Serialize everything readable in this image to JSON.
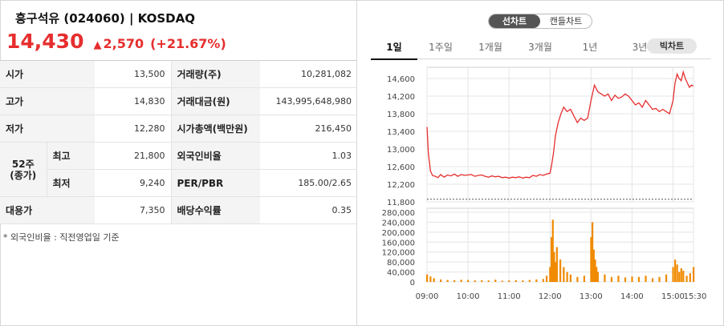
{
  "stock": {
    "title": "흥구석유 (024060) | KOSDAQ",
    "price": "14,430",
    "change_arrow": "▲",
    "change": "2,570",
    "change_rate": "(+21.67%)"
  },
  "info_table": {
    "rows": [
      {
        "l1": "시가",
        "v1": "13,500",
        "l2": "거래량(주)",
        "v2": "10,281,082"
      },
      {
        "l1": "고가",
        "v1": "14,830",
        "l2": "거래대금(원)",
        "v2": "143,995,648,980"
      },
      {
        "l1": "저가",
        "v1": "12,280",
        "l2": "시가총액(백만원)",
        "v2": "216,450"
      },
      {
        "l1": "최고",
        "v1": "21,800",
        "l2": "외국인비율",
        "v2": "1.03"
      },
      {
        "l1": "최저",
        "v1": "9,240",
        "l2": "PER/PBR",
        "v2": "185.00/2.65"
      },
      {
        "l1": "대용가",
        "v1": "7,350",
        "l2": "배당수익률",
        "v2": "0.35"
      }
    ],
    "week52_label_1": "52주",
    "week52_label_2": "(종가)"
  },
  "footnote": "* 외국인비율 : 직전영업일 기준",
  "chart_type_toggle": {
    "line": "선차트",
    "candle": "캔들차트",
    "selected": "선차트"
  },
  "periods": [
    "1일",
    "1주일",
    "1개월",
    "3개월",
    "1년",
    "3년"
  ],
  "active_period": "1일",
  "big_chart_label": "빅차트",
  "colors": {
    "up": "#e62e2e",
    "volume": "#f08a00",
    "prev_close": "#555555"
  },
  "chart_data": [
    {
      "type": "line",
      "title": "",
      "ylim": [
        11800,
        14800
      ],
      "y_ticks": [
        "14,600",
        "14,200",
        "13,800",
        "13,400",
        "13,000",
        "12,600",
        "12,200",
        "11,800"
      ],
      "x_ticks": [
        "09:00",
        "10:00",
        "11:00",
        "12:00",
        "13:00",
        "14:00",
        "15:00",
        "15:30"
      ],
      "prev_close": 11860,
      "series": [
        {
          "x": [
            "09:00",
            "09:02",
            "09:05",
            "09:08",
            "09:12",
            "09:16",
            "09:20",
            "09:25",
            "09:30",
            "09:35",
            "09:40",
            "09:45",
            "09:50",
            "09:55",
            "10:00",
            "10:05",
            "10:10",
            "10:15",
            "10:20",
            "10:25",
            "10:30",
            "10:35",
            "10:40",
            "10:45",
            "10:50",
            "10:55",
            "11:00",
            "11:05",
            "11:10",
            "11:15",
            "11:20",
            "11:25",
            "11:30",
            "11:35",
            "11:40",
            "11:45",
            "11:50",
            "11:55",
            "12:00",
            "12:02",
            "12:05",
            "12:08",
            "12:12",
            "12:16",
            "12:20",
            "12:25",
            "12:30",
            "12:35",
            "12:40",
            "12:45",
            "12:50",
            "12:55",
            "13:00",
            "13:05",
            "13:10",
            "13:15",
            "13:20",
            "13:25",
            "13:30",
            "13:35",
            "13:40",
            "13:45",
            "13:50",
            "13:55",
            "14:00",
            "14:05",
            "14:10",
            "14:15",
            "14:20",
            "14:25",
            "14:30",
            "14:35",
            "14:40",
            "14:45",
            "14:50",
            "14:55",
            "15:00",
            "15:03",
            "15:06",
            "15:09",
            "15:12",
            "15:15",
            "15:18",
            "15:21",
            "15:24",
            "15:27",
            "15:30"
          ],
          "y": [
            13500,
            12900,
            12500,
            12400,
            12380,
            12350,
            12420,
            12360,
            12410,
            12390,
            12430,
            12380,
            12420,
            12400,
            12410,
            12420,
            12380,
            12400,
            12410,
            12380,
            12360,
            12390,
            12370,
            12380,
            12350,
            12360,
            12340,
            12360,
            12350,
            12370,
            12340,
            12360,
            12350,
            12400,
            12380,
            12420,
            12400,
            12430,
            12450,
            12600,
            12900,
            13300,
            13600,
            13800,
            13950,
            13850,
            13900,
            13750,
            13600,
            13700,
            13650,
            13700,
            14100,
            14450,
            14300,
            14250,
            14200,
            14250,
            14100,
            14220,
            14150,
            14180,
            14250,
            14200,
            14100,
            14000,
            14050,
            13950,
            14100,
            14000,
            13900,
            13920,
            13850,
            13900,
            13850,
            13800,
            14100,
            14500,
            14700,
            14600,
            14550,
            14750,
            14600,
            14500,
            14400,
            14450,
            14430
          ]
        }
      ]
    },
    {
      "type": "bar",
      "title": "",
      "ylim": [
        0,
        280000
      ],
      "y_ticks": [
        "280,000",
        "240,000",
        "200,000",
        "160,000",
        "120,000",
        "80,000",
        "40,000",
        "0"
      ],
      "x_ticks": [
        "09:00",
        "10:00",
        "11:00",
        "12:00",
        "13:00",
        "14:00",
        "15:00",
        "15:30"
      ],
      "series": [
        {
          "name": "",
          "x": [
            "09:00",
            "09:05",
            "09:10",
            "09:20",
            "09:30",
            "09:40",
            "09:50",
            "10:00",
            "10:10",
            "10:20",
            "10:30",
            "10:40",
            "10:50",
            "11:00",
            "11:10",
            "11:20",
            "11:30",
            "11:40",
            "11:50",
            "11:55",
            "12:00",
            "12:02",
            "12:04",
            "12:06",
            "12:08",
            "12:10",
            "12:15",
            "12:20",
            "12:25",
            "12:30",
            "12:40",
            "12:50",
            "13:00",
            "13:02",
            "13:04",
            "13:06",
            "13:08",
            "13:10",
            "13:20",
            "13:30",
            "13:40",
            "13:50",
            "14:00",
            "14:10",
            "14:20",
            "14:30",
            "14:40",
            "14:50",
            "15:00",
            "15:03",
            "15:06",
            "15:09",
            "15:12",
            "15:15",
            "15:20",
            "15:25",
            "15:30"
          ],
          "values": [
            30000,
            22000,
            15000,
            10000,
            8000,
            7000,
            9000,
            8000,
            6000,
            7000,
            6000,
            9000,
            5000,
            6000,
            7000,
            6000,
            8000,
            10000,
            12000,
            25000,
            60000,
            180000,
            250000,
            120000,
            80000,
            140000,
            90000,
            60000,
            40000,
            30000,
            20000,
            25000,
            180000,
            240000,
            130000,
            90000,
            60000,
            40000,
            30000,
            20000,
            25000,
            18000,
            22000,
            20000,
            25000,
            15000,
            20000,
            30000,
            60000,
            90000,
            70000,
            40000,
            55000,
            45000,
            25000,
            35000,
            60000
          ]
        }
      ]
    }
  ]
}
